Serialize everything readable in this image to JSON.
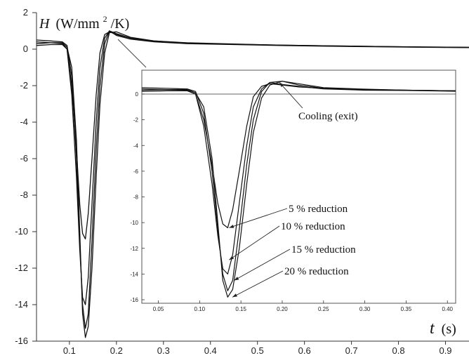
{
  "chart_data": [
    {
      "type": "line",
      "panel": "main",
      "ylabel_var": "H",
      "ylabel_unit": "(W/mm",
      "ylabel_sup": "2",
      "ylabel_tail": "/K)",
      "xlabel_var": "t",
      "xlabel_unit": "(s)",
      "xlim": [
        0.03,
        0.95
      ],
      "ylim": [
        -16,
        2
      ],
      "xticks": [
        "0.1",
        "0.2",
        "0.3",
        "0.4",
        "0.5",
        "0.6",
        "0.7",
        "0.8",
        "0.9"
      ],
      "yticks": [
        "2",
        "0",
        "-2",
        "-4",
        "-6",
        "-8",
        "-10",
        "-12",
        "-14",
        "-16"
      ],
      "grid": false,
      "series": [
        {
          "x": [
            0.03,
            0.06,
            0.085,
            0.095,
            0.105,
            0.115,
            0.122,
            0.128,
            0.134,
            0.14,
            0.148,
            0.157,
            0.165,
            0.175,
            0.185,
            0.2,
            0.23,
            0.28,
            0.35,
            0.45,
            0.55,
            0.65,
            0.75,
            0.85,
            0.95
          ],
          "y": [
            0.4,
            0.35,
            0.3,
            0.0,
            -2.0,
            -5.5,
            -8.5,
            -10.1,
            -10.4,
            -9.0,
            -6.0,
            -2.5,
            -0.2,
            0.8,
            0.95,
            0.8,
            0.6,
            0.45,
            0.35,
            0.28,
            0.22,
            0.18,
            0.15,
            0.12,
            0.1
          ]
        },
        {
          "x": [
            0.03,
            0.06,
            0.085,
            0.095,
            0.105,
            0.115,
            0.122,
            0.128,
            0.134,
            0.14,
            0.148,
            0.157,
            0.165,
            0.175,
            0.185,
            0.2,
            0.23,
            0.28,
            0.35,
            0.45,
            0.55,
            0.65,
            0.75,
            0.85,
            0.95
          ],
          "y": [
            0.2,
            0.25,
            0.25,
            0.0,
            -2.5,
            -7.0,
            -11.0,
            -13.6,
            -14.0,
            -12.5,
            -8.5,
            -4.0,
            -1.0,
            0.6,
            1.0,
            0.75,
            0.55,
            0.4,
            0.3,
            0.25,
            0.2,
            0.16,
            0.13,
            0.1,
            0.08
          ]
        },
        {
          "x": [
            0.03,
            0.06,
            0.085,
            0.095,
            0.105,
            0.115,
            0.122,
            0.128,
            0.134,
            0.14,
            0.148,
            0.157,
            0.165,
            0.175,
            0.185,
            0.2,
            0.23,
            0.28,
            0.35,
            0.45,
            0.55,
            0.65,
            0.75,
            0.85,
            0.95
          ],
          "y": [
            0.5,
            0.45,
            0.4,
            0.2,
            -1.5,
            -6.0,
            -10.5,
            -14.0,
            -15.3,
            -14.5,
            -10.5,
            -5.5,
            -2.0,
            0.3,
            1.0,
            0.85,
            0.6,
            0.42,
            0.32,
            0.26,
            0.21,
            0.17,
            0.14,
            0.11,
            0.09
          ]
        },
        {
          "x": [
            0.03,
            0.06,
            0.085,
            0.095,
            0.105,
            0.115,
            0.122,
            0.128,
            0.134,
            0.14,
            0.148,
            0.157,
            0.165,
            0.175,
            0.185,
            0.2,
            0.23,
            0.28,
            0.35,
            0.45,
            0.55,
            0.65,
            0.75,
            0.85,
            0.95
          ],
          "y": [
            0.3,
            0.35,
            0.35,
            0.1,
            -1.0,
            -5.0,
            -10.0,
            -14.5,
            -15.8,
            -15.2,
            -12.0,
            -7.0,
            -3.0,
            -0.2,
            0.9,
            0.95,
            0.65,
            0.45,
            0.33,
            0.27,
            0.22,
            0.18,
            0.15,
            0.12,
            0.1
          ]
        }
      ]
    },
    {
      "type": "line",
      "panel": "inset",
      "xlim": [
        0.03,
        0.41
      ],
      "ylim": [
        -16,
        1.5
      ],
      "xticks": [
        "0.05",
        "0.10",
        "0.15",
        "0.20",
        "0.25",
        "0.30",
        "0.35",
        "0.40"
      ],
      "yticks": [
        "0",
        "-2",
        "-4",
        "-6",
        "-8",
        "-10",
        "-12",
        "-14",
        "-16"
      ],
      "grid": false,
      "series": [
        {
          "x": [
            0.03,
            0.06,
            0.085,
            0.095,
            0.105,
            0.115,
            0.122,
            0.128,
            0.134,
            0.14,
            0.148,
            0.157,
            0.165,
            0.175,
            0.185,
            0.2,
            0.22,
            0.25,
            0.3,
            0.35,
            0.41
          ],
          "y": [
            0.4,
            0.35,
            0.3,
            0.0,
            -2.0,
            -5.5,
            -8.5,
            -10.1,
            -10.4,
            -9.0,
            -6.0,
            -2.5,
            -0.2,
            0.6,
            0.8,
            0.7,
            0.55,
            0.45,
            0.35,
            0.3,
            0.25
          ]
        },
        {
          "x": [
            0.03,
            0.06,
            0.085,
            0.095,
            0.105,
            0.115,
            0.122,
            0.128,
            0.134,
            0.14,
            0.148,
            0.157,
            0.165,
            0.175,
            0.185,
            0.2,
            0.22,
            0.25,
            0.3,
            0.35,
            0.41
          ],
          "y": [
            0.2,
            0.25,
            0.25,
            0.0,
            -2.5,
            -7.0,
            -11.0,
            -13.6,
            -14.0,
            -12.5,
            -8.5,
            -4.0,
            -1.0,
            0.4,
            0.9,
            0.75,
            0.6,
            0.4,
            0.3,
            0.28,
            0.22
          ]
        },
        {
          "x": [
            0.03,
            0.06,
            0.085,
            0.095,
            0.105,
            0.115,
            0.122,
            0.128,
            0.134,
            0.14,
            0.148,
            0.157,
            0.165,
            0.175,
            0.185,
            0.2,
            0.22,
            0.25,
            0.3,
            0.35,
            0.41
          ],
          "y": [
            0.5,
            0.45,
            0.4,
            0.2,
            -1.5,
            -6.0,
            -10.5,
            -14.0,
            -15.3,
            -14.5,
            -10.5,
            -5.5,
            -2.0,
            0.2,
            0.9,
            1.0,
            0.7,
            0.45,
            0.35,
            0.3,
            0.25
          ]
        },
        {
          "x": [
            0.03,
            0.06,
            0.085,
            0.095,
            0.105,
            0.115,
            0.122,
            0.128,
            0.134,
            0.14,
            0.148,
            0.157,
            0.165,
            0.175,
            0.185,
            0.2,
            0.22,
            0.25,
            0.3,
            0.35,
            0.41
          ],
          "y": [
            0.3,
            0.35,
            0.35,
            0.1,
            -1.0,
            -5.0,
            -10.0,
            -14.5,
            -15.8,
            -15.2,
            -12.0,
            -7.0,
            -3.0,
            -0.3,
            0.7,
            1.0,
            0.8,
            0.5,
            0.38,
            0.3,
            0.25
          ]
        }
      ],
      "annotations": [
        {
          "text": "Cooling (exit)",
          "at": [
            0.195,
            0.9
          ]
        },
        {
          "text": "5 % reduction",
          "at": [
            0.134,
            -10.4
          ]
        },
        {
          "text": "10 % reduction",
          "at": [
            0.134,
            -12.9
          ]
        },
        {
          "text": "15 % reduction",
          "at": [
            0.14,
            -14.5
          ]
        },
        {
          "text": "20 % reduction",
          "at": [
            0.138,
            -15.8
          ]
        }
      ]
    }
  ]
}
